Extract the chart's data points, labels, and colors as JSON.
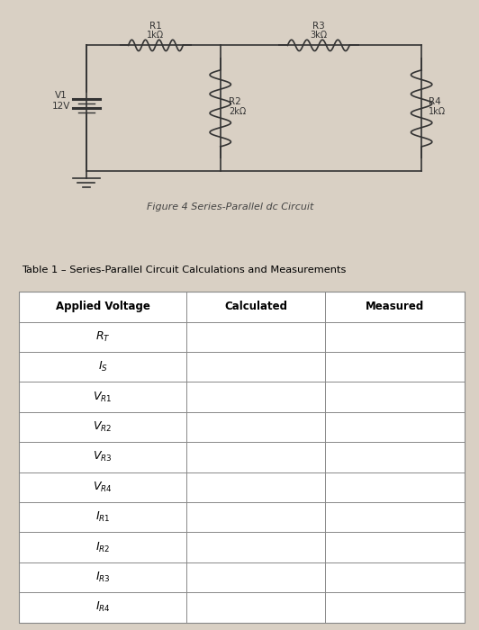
{
  "bg_color": "#d9d0c4",
  "fig_caption": "Figure 4 Series-Parallel dc Circuit",
  "table_title": "Table 1 – Series-Parallel Circuit Calculations and Measurements",
  "col_headers": [
    "Applied Voltage",
    "Calculated",
    "Measured"
  ],
  "row_labels_math": [
    "$R_T$",
    "$I_S$",
    "$V_{R1}$",
    "$V_{R2}$",
    "$V_{R3}$",
    "$V_{R4}$",
    "$I_{R1}$",
    "$I_{R2}$",
    "$I_{R3}$",
    "$I_{R4}$"
  ],
  "circuit": {
    "V1_label": "V1",
    "V1_value": "12V",
    "R1_label": "R1",
    "R1_value": "1kΩ",
    "R2_label": "R2",
    "R2_value": "2kΩ",
    "R3_label": "R3",
    "R3_value": "3kΩ",
    "R4_label": "R4",
    "R4_value": "1kΩ"
  },
  "lw": 1.2,
  "wire_color": "#333333",
  "table_bg": "#f0ece6",
  "table_line_color": "#888888",
  "header_fontsize": 8.5,
  "row_fontsize": 9.0,
  "caption_fontsize": 8.0
}
